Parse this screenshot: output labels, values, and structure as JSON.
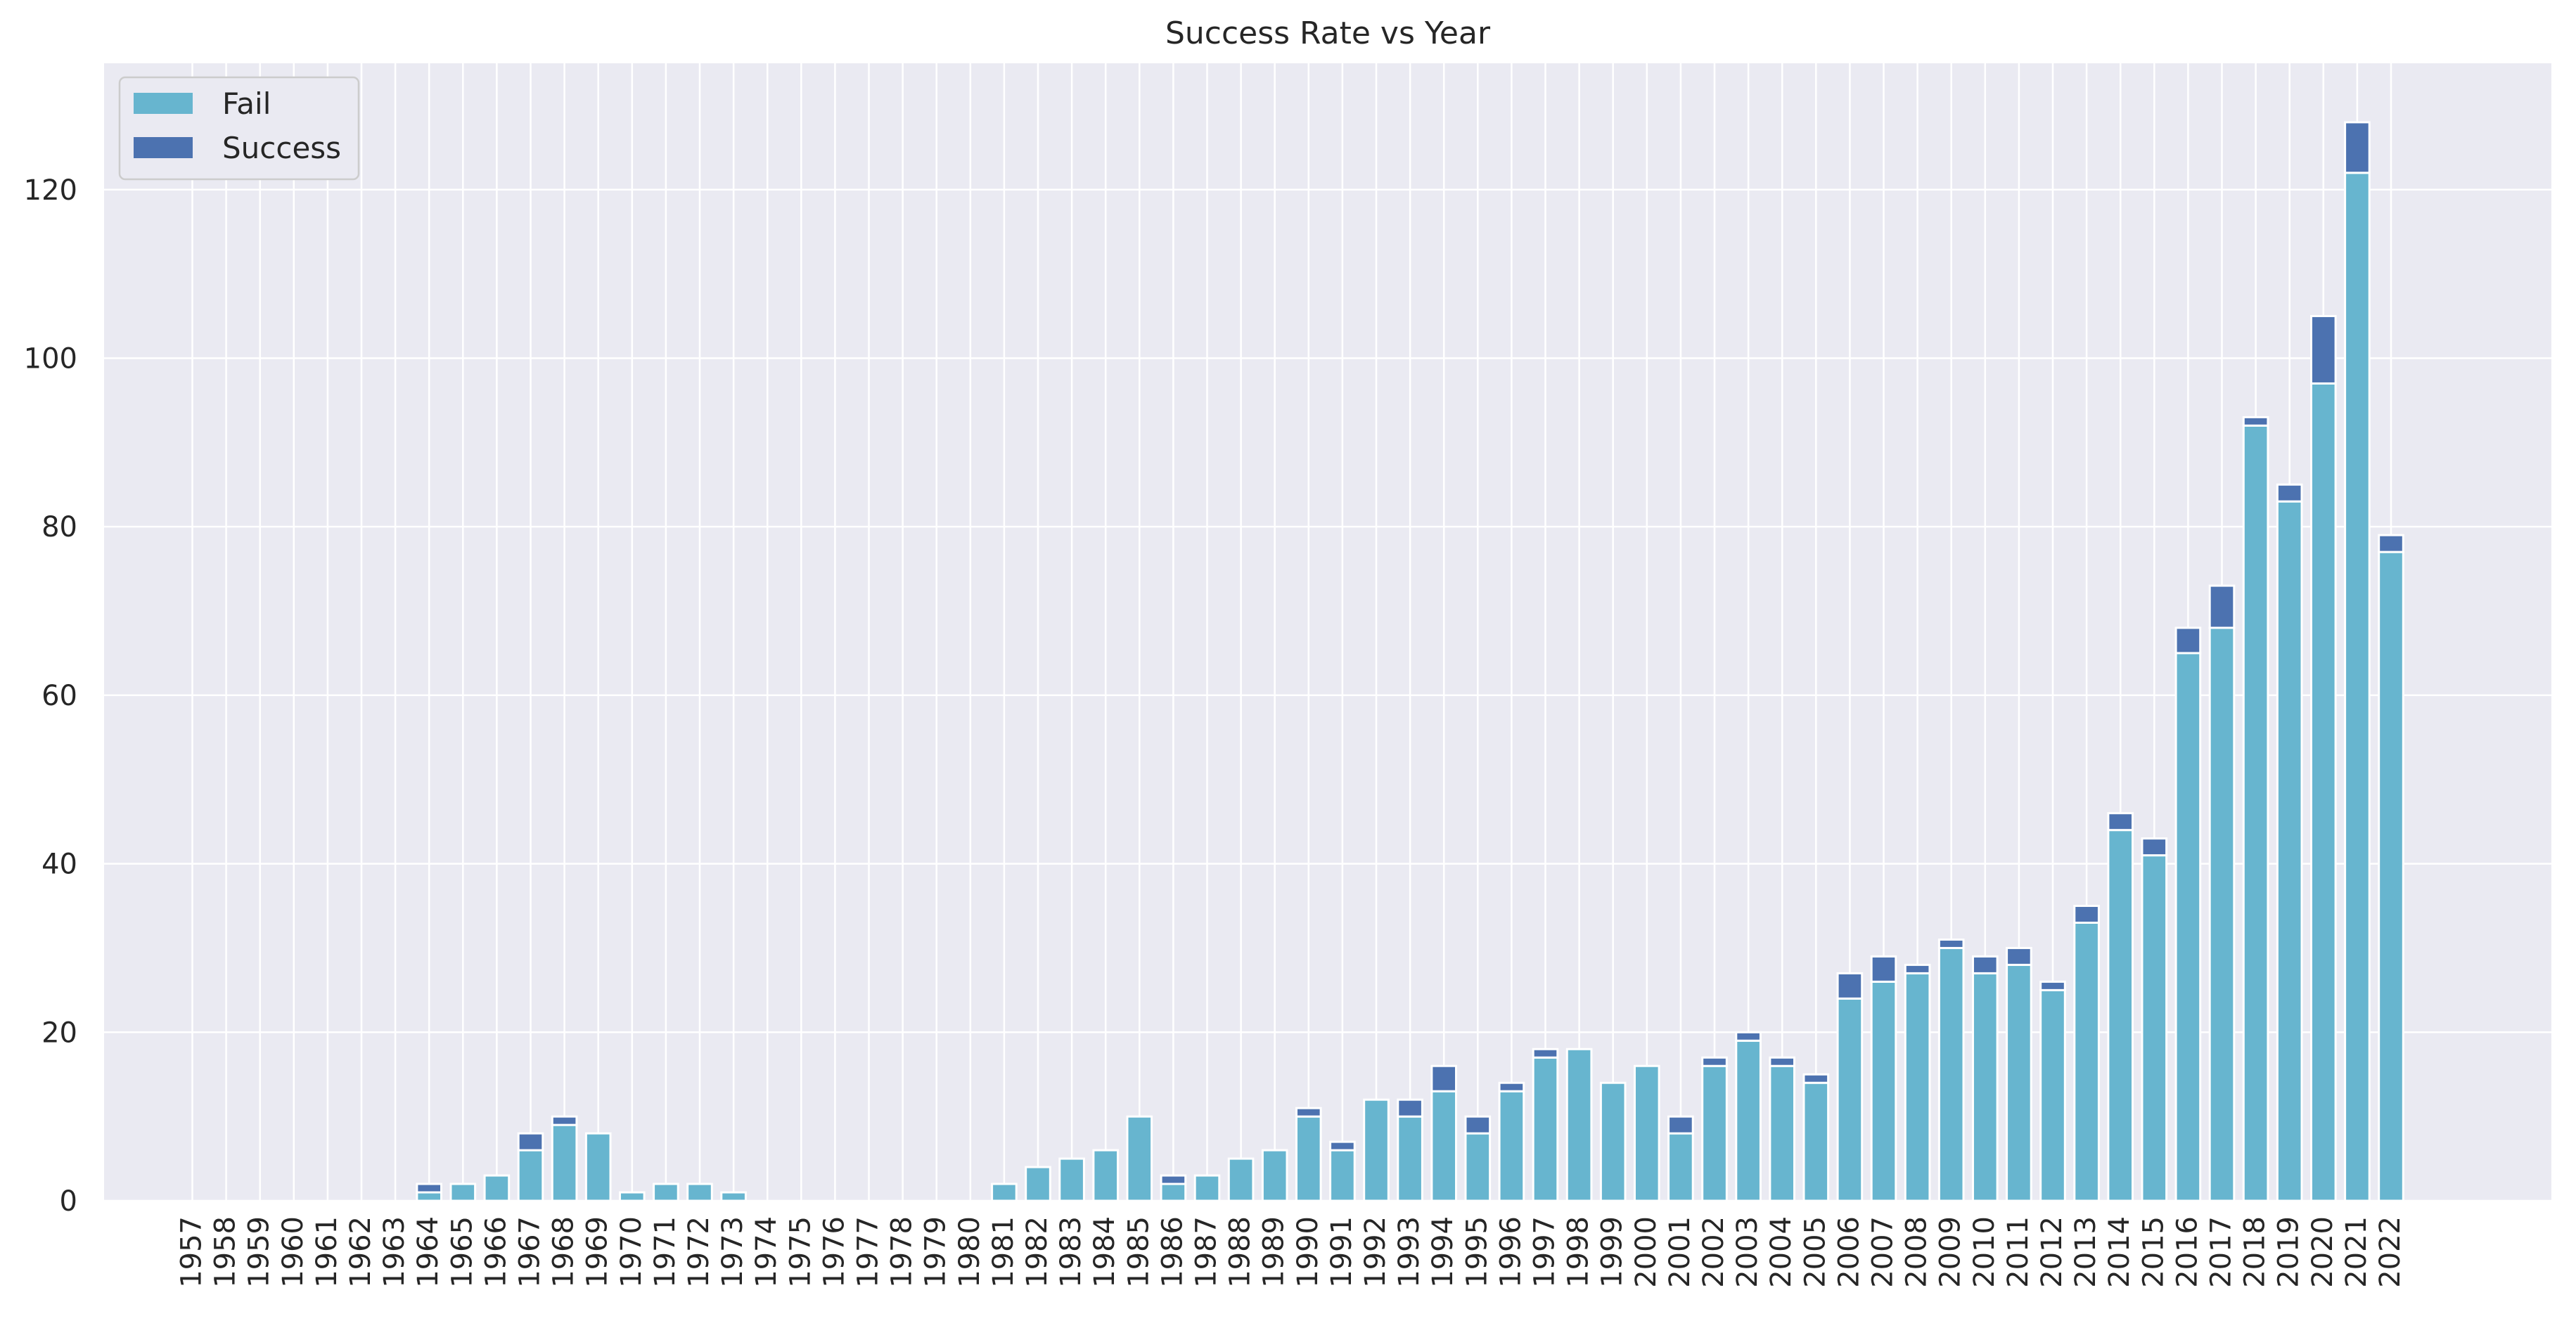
{
  "chart_data": {
    "type": "bar",
    "stacked": true,
    "title": "Success Rate vs Year",
    "xlabel": "",
    "ylabel": "",
    "ylim": [
      0,
      135
    ],
    "yticks": [
      0,
      20,
      40,
      60,
      80,
      100,
      120
    ],
    "grid": true,
    "legend_position": "top-left",
    "categories": [
      "1957",
      "1958",
      "1959",
      "1960",
      "1961",
      "1962",
      "1963",
      "1964",
      "1965",
      "1966",
      "1967",
      "1968",
      "1969",
      "1970",
      "1971",
      "1972",
      "1973",
      "1974",
      "1975",
      "1976",
      "1977",
      "1978",
      "1979",
      "1980",
      "1981",
      "1982",
      "1983",
      "1984",
      "1985",
      "1986",
      "1987",
      "1988",
      "1989",
      "1990",
      "1991",
      "1992",
      "1993",
      "1994",
      "1995",
      "1996",
      "1997",
      "1998",
      "1999",
      "2000",
      "2001",
      "2002",
      "2003",
      "2004",
      "2005",
      "2006",
      "2007",
      "2008",
      "2009",
      "2010",
      "2011",
      "2012",
      "2013",
      "2014",
      "2015",
      "2016",
      "2017",
      "2018",
      "2019",
      "2020",
      "2021",
      "2022"
    ],
    "series": [
      {
        "name": "Fail",
        "color": "#67b5cf",
        "values": [
          0,
          0,
          0,
          0,
          0,
          0,
          0,
          1,
          2,
          3,
          6,
          9,
          8,
          1,
          2,
          2,
          1,
          0,
          0,
          0,
          0,
          0,
          0,
          0,
          2,
          4,
          5,
          6,
          10,
          2,
          3,
          5,
          6,
          10,
          6,
          12,
          10,
          13,
          8,
          13,
          17,
          18,
          14,
          16,
          8,
          16,
          19,
          16,
          14,
          24,
          26,
          27,
          30,
          27,
          28,
          25,
          33,
          44,
          41,
          65,
          68,
          92,
          83,
          97,
          122,
          77
        ]
      },
      {
        "name": "Success",
        "color": "#4c72b0",
        "values": [
          0,
          0,
          0,
          0,
          0,
          0,
          0,
          1,
          0,
          0,
          2,
          1,
          0,
          0,
          0,
          0,
          0,
          0,
          0,
          0,
          0,
          0,
          0,
          0,
          0,
          0,
          0,
          0,
          0,
          1,
          0,
          0,
          0,
          1,
          1,
          0,
          2,
          3,
          2,
          1,
          1,
          0,
          0,
          0,
          2,
          1,
          1,
          1,
          1,
          3,
          3,
          1,
          1,
          2,
          2,
          1,
          2,
          2,
          2,
          3,
          5,
          1,
          2,
          8,
          6,
          2
        ]
      }
    ]
  }
}
